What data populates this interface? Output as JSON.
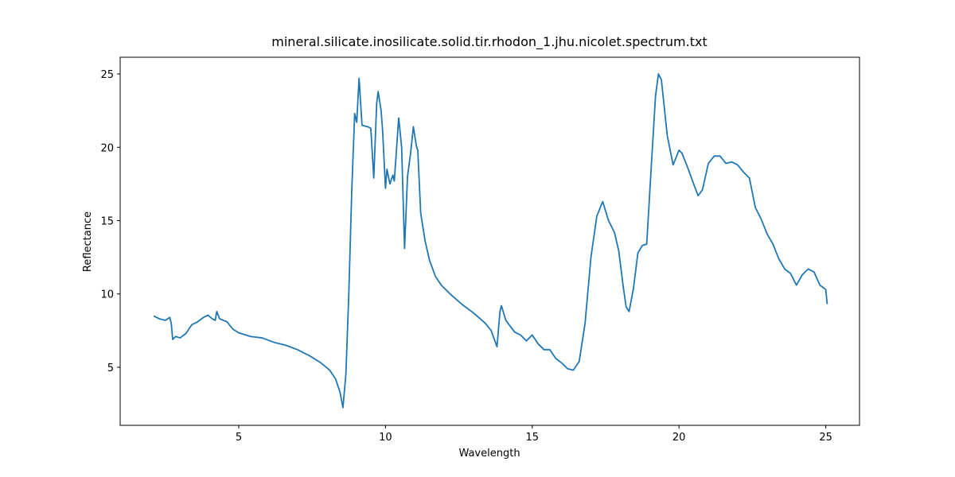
{
  "chart_data": {
    "type": "line",
    "title": "mineral.silicate.inosilicate.solid.tir.rhodon_1.jhu.nicolet.spectrum.txt",
    "xlabel": "Wavelength",
    "ylabel": "Reflectance",
    "x": [
      2.1,
      2.3,
      2.5,
      2.65,
      2.7,
      2.75,
      2.85,
      3.0,
      3.2,
      3.4,
      3.6,
      3.8,
      3.95,
      4.1,
      4.2,
      4.25,
      4.35,
      4.6,
      4.8,
      5.0,
      5.4,
      5.8,
      6.2,
      6.6,
      7.0,
      7.4,
      7.8,
      8.1,
      8.3,
      8.45,
      8.55,
      8.65,
      8.75,
      8.85,
      8.95,
      9.02,
      9.1,
      9.2,
      9.4,
      9.5,
      9.6,
      9.7,
      9.75,
      9.85,
      9.9,
      10.0,
      10.05,
      10.15,
      10.25,
      10.3,
      10.45,
      10.55,
      10.65,
      10.75,
      10.85,
      10.95,
      11.05,
      11.1,
      11.2,
      11.35,
      11.5,
      11.7,
      11.9,
      12.2,
      12.6,
      13.0,
      13.4,
      13.6,
      13.8,
      13.9,
      13.95,
      14.1,
      14.4,
      14.6,
      14.8,
      15.0,
      15.2,
      15.4,
      15.6,
      15.8,
      16.0,
      16.2,
      16.4,
      16.6,
      16.8,
      17.0,
      17.2,
      17.4,
      17.6,
      17.8,
      17.95,
      18.1,
      18.2,
      18.3,
      18.45,
      18.6,
      18.75,
      18.9,
      19.05,
      19.2,
      19.3,
      19.4,
      19.6,
      19.8,
      20.0,
      20.1,
      20.3,
      20.5,
      20.65,
      20.8,
      21.0,
      21.2,
      21.4,
      21.6,
      21.8,
      22.0,
      22.2,
      22.4,
      22.6,
      22.8,
      23.0,
      23.2,
      23.4,
      23.6,
      23.8,
      24.0,
      24.2,
      24.4,
      24.6,
      24.8,
      25.0,
      25.05
    ],
    "series": [
      {
        "color": "#1f77b4",
        "values": [
          8.5,
          8.3,
          8.2,
          8.4,
          8.0,
          6.9,
          7.1,
          7.0,
          7.3,
          7.9,
          8.1,
          8.4,
          8.55,
          8.3,
          8.2,
          8.8,
          8.3,
          8.1,
          7.6,
          7.35,
          7.1,
          7.0,
          6.7,
          6.5,
          6.2,
          5.8,
          5.3,
          4.8,
          4.2,
          3.3,
          2.25,
          4.5,
          10,
          17,
          22.3,
          21.7,
          24.7,
          21.5,
          21.4,
          21.3,
          17.9,
          23.0,
          23.8,
          22.5,
          21.2,
          17.2,
          18.5,
          17.5,
          18.1,
          17.7,
          22.0,
          20.0,
          13.1,
          18,
          19.5,
          21.4,
          20.1,
          19.8,
          15.5,
          13.6,
          12.3,
          11.2,
          10.6,
          10.0,
          9.3,
          8.7,
          8.0,
          7.5,
          6.4,
          8.8,
          9.2,
          8.2,
          7.4,
          7.2,
          6.8,
          7.2,
          6.6,
          6.2,
          6.2,
          5.6,
          5.3,
          4.9,
          4.8,
          5.4,
          8.0,
          12.5,
          15.3,
          16.3,
          15.0,
          14.2,
          12.9,
          10.5,
          9.1,
          8.8,
          10.4,
          12.8,
          13.3,
          13.4,
          18.5,
          23.5,
          25.0,
          24.6,
          20.8,
          18.8,
          19.8,
          19.6,
          18.6,
          17.5,
          16.7,
          17.1,
          18.9,
          19.4,
          19.4,
          18.9,
          19.0,
          18.8,
          18.3,
          17.9,
          15.9,
          15.1,
          14.1,
          13.4,
          12.4,
          11.7,
          11.4,
          10.6,
          11.3,
          11.7,
          11.5,
          10.6,
          10.3,
          9.3
        ]
      }
    ],
    "xlim": [
      0.96,
      26.15
    ],
    "ylim": [
      1.04,
      26.14
    ],
    "xticks": [
      5,
      10,
      15,
      20,
      25
    ],
    "yticks": [
      5,
      10,
      15,
      20,
      25
    ]
  }
}
